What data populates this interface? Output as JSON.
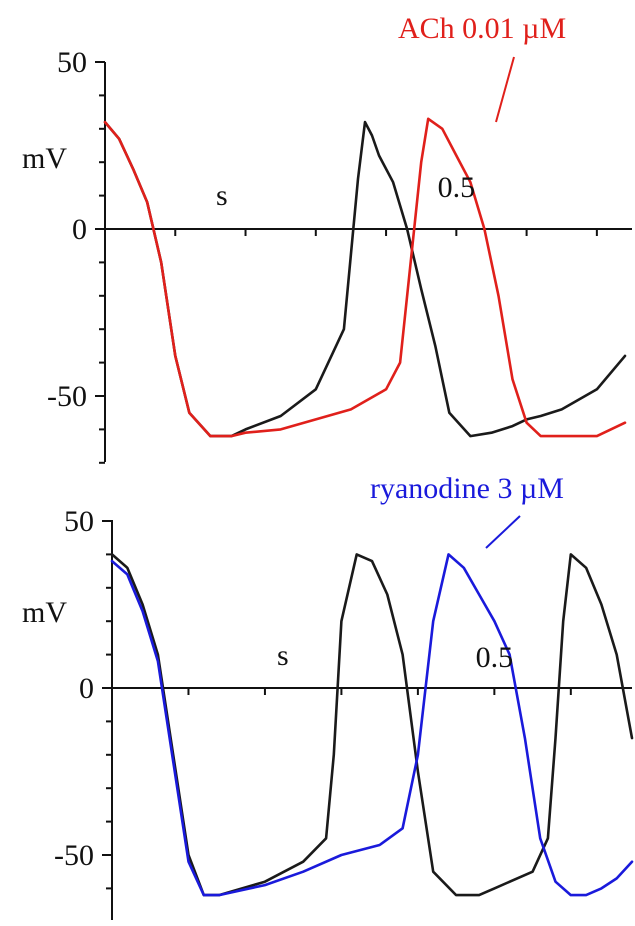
{
  "chart_data": [
    {
      "type": "line",
      "ylabel": "mV",
      "xlabel": "s",
      "y_ticks": [
        50,
        0,
        -50
      ],
      "y_tick_labels": [
        "50",
        "0",
        "-50"
      ],
      "x_tick_label": "0.5",
      "x_tick_label_value": 0.5,
      "ylim": [
        -70,
        50
      ],
      "xlim": [
        0,
        0.75
      ],
      "annotation": "ACh 0.01 µM",
      "annotation_color": "#e0201b",
      "series": [
        {
          "color": "#1a1a1a",
          "x": [
            0.0,
            0.02,
            0.04,
            0.06,
            0.08,
            0.1,
            0.12,
            0.15,
            0.18,
            0.2,
            0.25,
            0.3,
            0.34,
            0.36,
            0.37,
            0.38,
            0.39,
            0.41,
            0.43,
            0.45,
            0.47,
            0.49,
            0.52,
            0.55,
            0.58,
            0.6,
            0.62,
            0.65,
            0.7,
            0.74
          ],
          "y": [
            32,
            27,
            18,
            8,
            -10,
            -38,
            -55,
            -62,
            -62,
            -60,
            -56,
            -48,
            -30,
            15,
            32,
            28,
            22,
            14,
            0,
            -18,
            -35,
            -55,
            -62,
            -61,
            -59,
            -57,
            -56,
            -54,
            -48,
            -38
          ]
        },
        {
          "color": "#e0201b",
          "x": [
            0.0,
            0.02,
            0.04,
            0.06,
            0.08,
            0.1,
            0.12,
            0.15,
            0.18,
            0.2,
            0.25,
            0.3,
            0.35,
            0.4,
            0.42,
            0.45,
            0.46,
            0.48,
            0.5,
            0.52,
            0.54,
            0.56,
            0.58,
            0.6,
            0.62,
            0.65,
            0.7,
            0.74
          ],
          "y": [
            32,
            27,
            18,
            8,
            -10,
            -38,
            -55,
            -62,
            -62,
            -61,
            -60,
            -57,
            -54,
            -48,
            -40,
            20,
            33,
            30,
            22,
            14,
            0,
            -20,
            -45,
            -58,
            -62,
            -62,
            -62,
            -58
          ]
        }
      ]
    },
    {
      "type": "line",
      "ylabel": "mV",
      "xlabel": "s",
      "y_ticks": [
        50,
        0,
        -50
      ],
      "y_tick_labels": [
        "50",
        "0",
        "-50"
      ],
      "x_tick_label": "0.5",
      "x_tick_label_value": 0.5,
      "ylim": [
        -70,
        50
      ],
      "xlim": [
        0,
        0.68
      ],
      "annotation": "ryanodine 3 µM",
      "annotation_color": "#1a1adb",
      "series": [
        {
          "color": "#1a1a1a",
          "x": [
            0.0,
            0.02,
            0.04,
            0.06,
            0.08,
            0.1,
            0.12,
            0.14,
            0.2,
            0.25,
            0.28,
            0.29,
            0.3,
            0.32,
            0.34,
            0.36,
            0.38,
            0.4,
            0.42,
            0.45,
            0.48,
            0.5,
            0.55,
            0.57,
            0.58,
            0.59,
            0.6,
            0.62,
            0.64,
            0.66,
            0.68
          ],
          "y": [
            40,
            36,
            25,
            10,
            -20,
            -50,
            -62,
            -62,
            -58,
            -52,
            -45,
            -20,
            20,
            40,
            38,
            28,
            10,
            -25,
            -55,
            -62,
            -62,
            -60,
            -55,
            -45,
            -15,
            20,
            40,
            36,
            25,
            10,
            -15
          ]
        },
        {
          "color": "#1a1adb",
          "x": [
            0.0,
            0.02,
            0.04,
            0.06,
            0.08,
            0.1,
            0.12,
            0.14,
            0.2,
            0.25,
            0.3,
            0.35,
            0.38,
            0.4,
            0.42,
            0.44,
            0.46,
            0.48,
            0.5,
            0.52,
            0.54,
            0.56,
            0.58,
            0.6,
            0.62,
            0.64,
            0.66,
            0.68
          ],
          "y": [
            38,
            34,
            23,
            8,
            -22,
            -52,
            -62,
            -62,
            -59,
            -55,
            -50,
            -47,
            -42,
            -20,
            20,
            40,
            36,
            28,
            20,
            10,
            -15,
            -45,
            -58,
            -62,
            -62,
            -60,
            -57,
            -52
          ]
        }
      ]
    }
  ]
}
